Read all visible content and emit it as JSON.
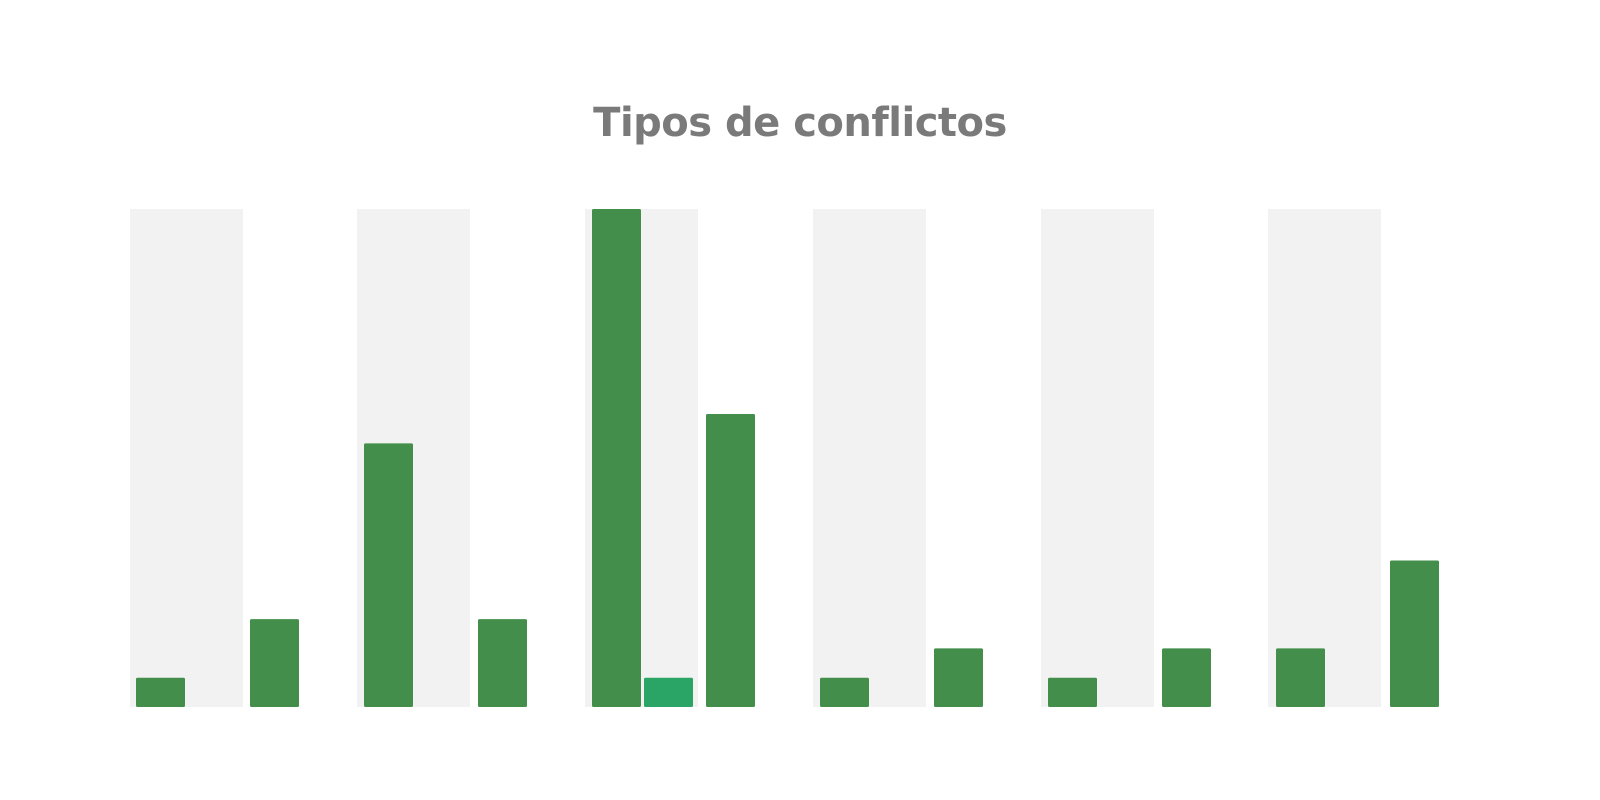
{
  "title": "Tipos de conflictos",
  "colors": {
    "bar": "#438e4a",
    "highlight": "#2ba566",
    "band": "#f2f2f2"
  },
  "chart_data": {
    "type": "bar",
    "title": "Tipos de conflictos",
    "xlabel": "",
    "ylabel": "",
    "ylim": [
      0,
      17
    ],
    "grid": false,
    "legend": "none",
    "bars": [
      {
        "value": 1,
        "style": "normal"
      },
      {
        "value": 3,
        "style": "normal"
      },
      {
        "value": 9,
        "style": "normal"
      },
      {
        "value": 3,
        "style": "normal"
      },
      {
        "value": 17,
        "style": "normal"
      },
      {
        "value": 1,
        "style": "highlight"
      },
      {
        "value": 10,
        "style": "normal"
      },
      {
        "value": 1,
        "style": "normal"
      },
      {
        "value": 2,
        "style": "normal"
      },
      {
        "value": 1,
        "style": "normal"
      },
      {
        "value": 2,
        "style": "normal"
      },
      {
        "value": 2,
        "style": "normal"
      },
      {
        "value": 5,
        "style": "normal"
      }
    ]
  }
}
